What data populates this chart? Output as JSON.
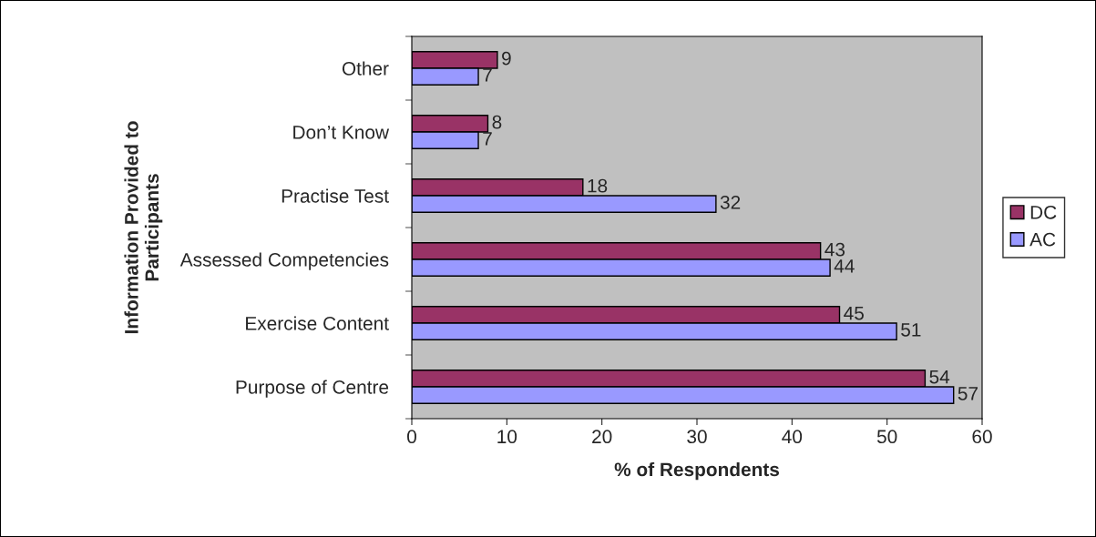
{
  "chart_data": {
    "type": "bar",
    "orientation": "horizontal",
    "categories": [
      "Other",
      "Don’t Know",
      "Practise Test",
      "Assessed Competencies",
      "Exercise Content",
      "Purpose of Centre"
    ],
    "series": [
      {
        "name": "DC",
        "color": "#993366",
        "values": [
          9,
          8,
          18,
          43,
          45,
          54
        ]
      },
      {
        "name": "AC",
        "color": "#9999ff",
        "values": [
          7,
          7,
          32,
          44,
          51,
          57
        ]
      }
    ],
    "xlim": [
      0,
      60
    ],
    "xticks": [
      0,
      10,
      20,
      30,
      40,
      50,
      60
    ],
    "xlabel": "% of Respondents",
    "ylabel": "Information Provided to\nParticipants",
    "data_labels": true,
    "legend": "right",
    "grid": false
  }
}
